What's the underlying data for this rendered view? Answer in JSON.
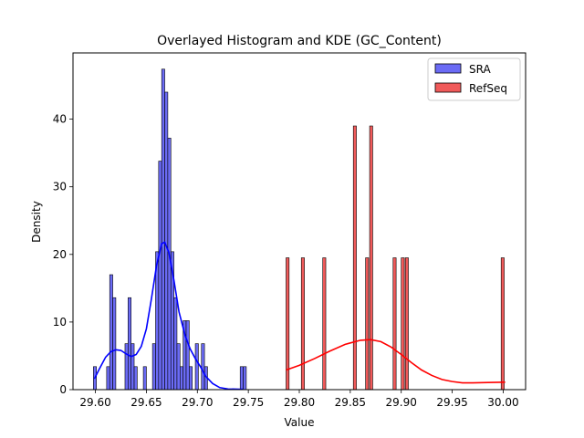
{
  "chart_data": {
    "type": "histogram",
    "title": "Overlayed Histogram and KDE (GC_Content)",
    "xlabel": "Value",
    "ylabel": "Density",
    "xlim": [
      29.578,
      30.022
    ],
    "ylim": [
      0,
      49.8
    ],
    "xticks": [
      "29.60",
      "29.65",
      "29.70",
      "29.75",
      "29.80",
      "29.85",
      "29.90",
      "29.95",
      "30.00"
    ],
    "xtick_values": [
      29.6,
      29.65,
      29.7,
      29.75,
      29.8,
      29.85,
      29.9,
      29.95,
      30.0
    ],
    "yticks": [
      "0",
      "10",
      "20",
      "30",
      "40"
    ],
    "ytick_values": [
      0,
      10,
      20,
      30,
      40
    ],
    "grid": false,
    "legend_position": "top-right",
    "series": [
      {
        "name": "SRA",
        "color": "#0000ff",
        "fill": "#6b6bf5",
        "bin_width": 0.003,
        "bins": [
          [
            29.598,
            3.4
          ],
          [
            29.611,
            3.4
          ],
          [
            29.614,
            17.0
          ],
          [
            29.617,
            13.6
          ],
          [
            29.629,
            6.8
          ],
          [
            29.632,
            13.6
          ],
          [
            29.635,
            6.8
          ],
          [
            29.638,
            3.4
          ],
          [
            29.647,
            3.4
          ],
          [
            29.656,
            6.8
          ],
          [
            29.659,
            20.4
          ],
          [
            29.662,
            33.8
          ],
          [
            29.665,
            47.4
          ],
          [
            29.668,
            44.0
          ],
          [
            29.671,
            37.2
          ],
          [
            29.674,
            20.4
          ],
          [
            29.677,
            13.6
          ],
          [
            29.68,
            6.8
          ],
          [
            29.683,
            3.4
          ],
          [
            29.686,
            10.2
          ],
          [
            29.689,
            10.2
          ],
          [
            29.692,
            3.4
          ],
          [
            29.698,
            6.8
          ],
          [
            29.704,
            6.8
          ],
          [
            29.707,
            3.4
          ],
          [
            29.742,
            3.4
          ],
          [
            29.745,
            3.4
          ]
        ],
        "kde": [
          [
            29.599,
            1.6
          ],
          [
            29.604,
            3.1
          ],
          [
            29.61,
            4.8
          ],
          [
            29.615,
            5.6
          ],
          [
            29.62,
            5.9
          ],
          [
            29.625,
            5.8
          ],
          [
            29.63,
            5.3
          ],
          [
            29.635,
            4.9
          ],
          [
            29.64,
            5.2
          ],
          [
            29.645,
            6.4
          ],
          [
            29.65,
            9.0
          ],
          [
            29.655,
            13.5
          ],
          [
            29.66,
            18.4
          ],
          [
            29.665,
            21.6
          ],
          [
            29.668,
            21.8
          ],
          [
            29.672,
            20.3
          ],
          [
            29.677,
            16.2
          ],
          [
            29.682,
            11.5
          ],
          [
            29.688,
            8.0
          ],
          [
            29.693,
            6.0
          ],
          [
            29.698,
            4.6
          ],
          [
            29.703,
            3.4
          ],
          [
            29.708,
            2.0
          ],
          [
            29.715,
            0.9
          ],
          [
            29.722,
            0.3
          ],
          [
            29.73,
            0.1
          ],
          [
            29.745,
            0.05
          ]
        ]
      },
      {
        "name": "RefSeq",
        "color": "#ff0000",
        "fill": "#f05a5a",
        "bin_width": 0.003,
        "bins": [
          [
            29.787,
            19.5
          ],
          [
            29.802,
            19.5
          ],
          [
            29.823,
            19.5
          ],
          [
            29.853,
            39.0
          ],
          [
            29.865,
            19.5
          ],
          [
            29.869,
            39.0
          ],
          [
            29.892,
            19.5
          ],
          [
            29.9,
            19.5
          ],
          [
            29.904,
            19.5
          ],
          [
            29.998,
            19.5
          ]
        ],
        "kde": [
          [
            29.787,
            2.9
          ],
          [
            29.8,
            3.6
          ],
          [
            29.815,
            4.6
          ],
          [
            29.83,
            5.7
          ],
          [
            29.845,
            6.7
          ],
          [
            29.86,
            7.3
          ],
          [
            29.87,
            7.4
          ],
          [
            29.88,
            7.1
          ],
          [
            29.89,
            6.3
          ],
          [
            29.9,
            5.2
          ],
          [
            29.91,
            4.0
          ],
          [
            29.92,
            2.9
          ],
          [
            29.93,
            2.1
          ],
          [
            29.94,
            1.5
          ],
          [
            29.95,
            1.2
          ],
          [
            29.96,
            1.0
          ],
          [
            29.97,
            1.0
          ],
          [
            29.985,
            1.05
          ],
          [
            30.002,
            1.1
          ]
        ]
      }
    ]
  }
}
